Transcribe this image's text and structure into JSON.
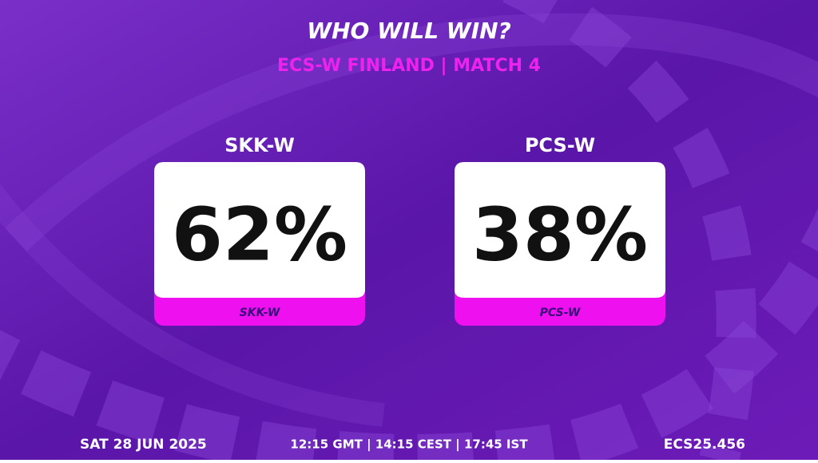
{
  "header": {
    "title": "WHO WILL WIN?",
    "subtitle": "ECS-W FINLAND | MATCH 4"
  },
  "teams": [
    {
      "name": "SKK-W",
      "percent": "62%",
      "tag": "SKK-W"
    },
    {
      "name": "PCS-W",
      "percent": "38%",
      "tag": "PCS-W"
    }
  ],
  "footer": {
    "date": "SAT 28 JUN 2025",
    "time": "12:15 GMT | 14:15 CEST | 17:45 IST",
    "code": "ECS25.456"
  }
}
